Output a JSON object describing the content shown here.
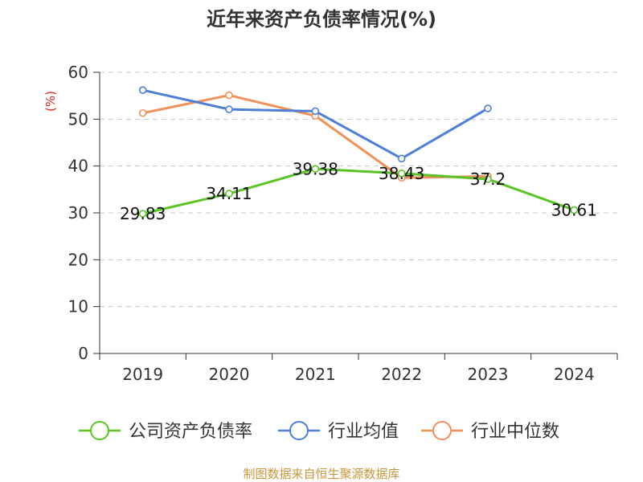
{
  "chart_data": {
    "type": "line",
    "title": "近年来资产负债率情况(%)",
    "ylabel": "(%)",
    "xlabel": "",
    "categories": [
      "2019",
      "2020",
      "2021",
      "2022",
      "2023",
      "2024"
    ],
    "ylim": [
      0,
      60
    ],
    "yticks": [
      0,
      10,
      20,
      30,
      40,
      50,
      60
    ],
    "grid": true,
    "legend_position": "bottom",
    "series": [
      {
        "name": "公司资产负债率",
        "color": "#5bc425",
        "values": [
          29.83,
          34.11,
          39.38,
          38.43,
          37.2,
          30.61
        ],
        "labels": [
          "29.83",
          "34.11",
          "39.38",
          "38.43",
          "37.2",
          "30.61"
        ]
      },
      {
        "name": "行业均值",
        "color": "#4e7fd8",
        "values": [
          56.2,
          52.1,
          51.7,
          41.6,
          52.3,
          null
        ]
      },
      {
        "name": "行业中位数",
        "color": "#f0915a",
        "values": [
          51.3,
          55.1,
          50.7,
          37.5,
          37.8,
          null
        ]
      }
    ]
  },
  "source": "制图数据来自恒生聚源数据库"
}
